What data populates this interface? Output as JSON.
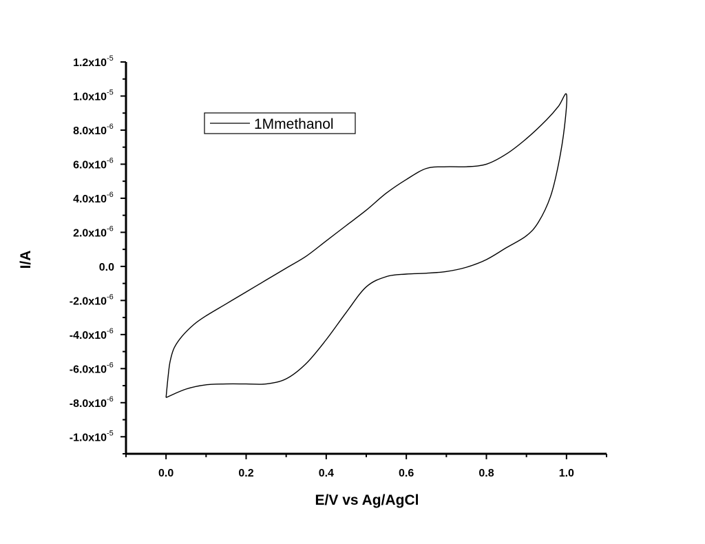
{
  "chart_data": {
    "type": "line",
    "xlabel": "E/V vs Ag/AgCl",
    "ylabel": "I/A",
    "xlim": [
      -0.1,
      1.1
    ],
    "ylim": [
      -1.1e-05,
      1.2e-05
    ],
    "x_ticks": [
      {
        "value": 0.0,
        "label": "0.0"
      },
      {
        "value": 0.2,
        "label": "0.2"
      },
      {
        "value": 0.4,
        "label": "0.4"
      },
      {
        "value": 0.6,
        "label": "0.6"
      },
      {
        "value": 0.8,
        "label": "0.8"
      },
      {
        "value": 1.0,
        "label": "1.0"
      }
    ],
    "y_ticks": [
      {
        "value": 1.2e-05,
        "label": "1.2x10",
        "exp": "-5"
      },
      {
        "value": 1e-05,
        "label": "1.0x10",
        "exp": "-5"
      },
      {
        "value": 8e-06,
        "label": "8.0x10",
        "exp": "-6"
      },
      {
        "value": 6e-06,
        "label": "6.0x10",
        "exp": "-6"
      },
      {
        "value": 4e-06,
        "label": "4.0x10",
        "exp": "-6"
      },
      {
        "value": 2e-06,
        "label": "2.0x10",
        "exp": "-6"
      },
      {
        "value": 0.0,
        "label": "0.0",
        "exp": ""
      },
      {
        "value": -2e-06,
        "label": "-2.0x10",
        "exp": "-6"
      },
      {
        "value": -4e-06,
        "label": "-4.0x10",
        "exp": "-6"
      },
      {
        "value": -6e-06,
        "label": "-6.0x10",
        "exp": "-6"
      },
      {
        "value": -8e-06,
        "label": "-8.0x10",
        "exp": "-6"
      },
      {
        "value": -1e-05,
        "label": "-1.0x10",
        "exp": "-5"
      }
    ],
    "grid": false,
    "legend_position": "top-left",
    "series": [
      {
        "name": "1Mmethanol",
        "color": "#000000",
        "points": [
          [
            0.0,
            -7.7e-06
          ],
          [
            0.005,
            -6.5e-06
          ],
          [
            0.01,
            -5.6e-06
          ],
          [
            0.02,
            -4.8e-06
          ],
          [
            0.04,
            -4.1e-06
          ],
          [
            0.07,
            -3.4e-06
          ],
          [
            0.1,
            -2.9e-06
          ],
          [
            0.15,
            -2.2e-06
          ],
          [
            0.2,
            -1.5e-06
          ],
          [
            0.25,
            -8e-07
          ],
          [
            0.3,
            -1e-07
          ],
          [
            0.35,
            6e-07
          ],
          [
            0.4,
            1.5e-06
          ],
          [
            0.45,
            2.4e-06
          ],
          [
            0.5,
            3.3e-06
          ],
          [
            0.55,
            4.3e-06
          ],
          [
            0.6,
            5.1e-06
          ],
          [
            0.65,
            5.75e-06
          ],
          [
            0.7,
            5.85e-06
          ],
          [
            0.75,
            5.85e-06
          ],
          [
            0.8,
            6e-06
          ],
          [
            0.85,
            6.6e-06
          ],
          [
            0.9,
            7.5e-06
          ],
          [
            0.95,
            8.6e-06
          ],
          [
            0.98,
            9.4e-06
          ],
          [
            1.0,
            1.01e-05
          ],
          [
            0.995,
            8.2e-06
          ],
          [
            0.98,
            6e-06
          ],
          [
            0.96,
            4.1e-06
          ],
          [
            0.93,
            2.6e-06
          ],
          [
            0.9,
            1.8e-06
          ],
          [
            0.85,
            1.1e-06
          ],
          [
            0.8,
            4e-07
          ],
          [
            0.75,
            -5e-08
          ],
          [
            0.7,
            -3e-07
          ],
          [
            0.65,
            -4e-07
          ],
          [
            0.6,
            -4.5e-07
          ],
          [
            0.55,
            -6e-07
          ],
          [
            0.5,
            -1.2e-06
          ],
          [
            0.45,
            -2.7e-06
          ],
          [
            0.4,
            -4.3e-06
          ],
          [
            0.35,
            -5.7e-06
          ],
          [
            0.3,
            -6.6e-06
          ],
          [
            0.25,
            -6.9e-06
          ],
          [
            0.2,
            -6.9e-06
          ],
          [
            0.15,
            -6.9e-06
          ],
          [
            0.1,
            -6.95e-06
          ],
          [
            0.05,
            -7.2e-06
          ],
          [
            0.0,
            -7.7e-06
          ]
        ]
      }
    ]
  }
}
